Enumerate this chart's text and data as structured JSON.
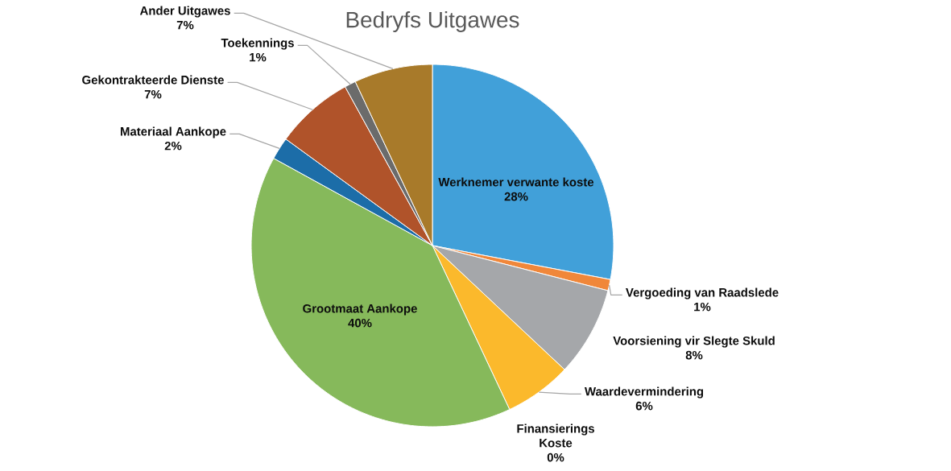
{
  "chart_data": {
    "type": "pie",
    "title": "Bedryfs Uitgawes",
    "categories": [
      "Werknemer verwante koste",
      "Vergoeding van Raadslede",
      "Voorsiening vir Slegte Skuld",
      "Waardevermindering",
      "Finansierings Koste",
      "Grootmaat Aankope",
      "Materiaal Aankope",
      "Gekontrakteerde Dienste",
      "Toekennings",
      "Ander Uitgawes"
    ],
    "values": [
      28,
      1,
      8,
      6,
      0,
      40,
      2,
      7,
      1,
      7
    ],
    "colors": [
      "#41a0d9",
      "#f0873a",
      "#a5a7aa",
      "#fbb92c",
      "#4472c4",
      "#86b95b",
      "#1c6da8",
      "#b0532a",
      "#6b6b6b",
      "#a87a2a"
    ],
    "value_labels": [
      "28%",
      "1%",
      "8%",
      "6%",
      "0%",
      "40%",
      "2%",
      "7%",
      "1%",
      "7%"
    ]
  }
}
